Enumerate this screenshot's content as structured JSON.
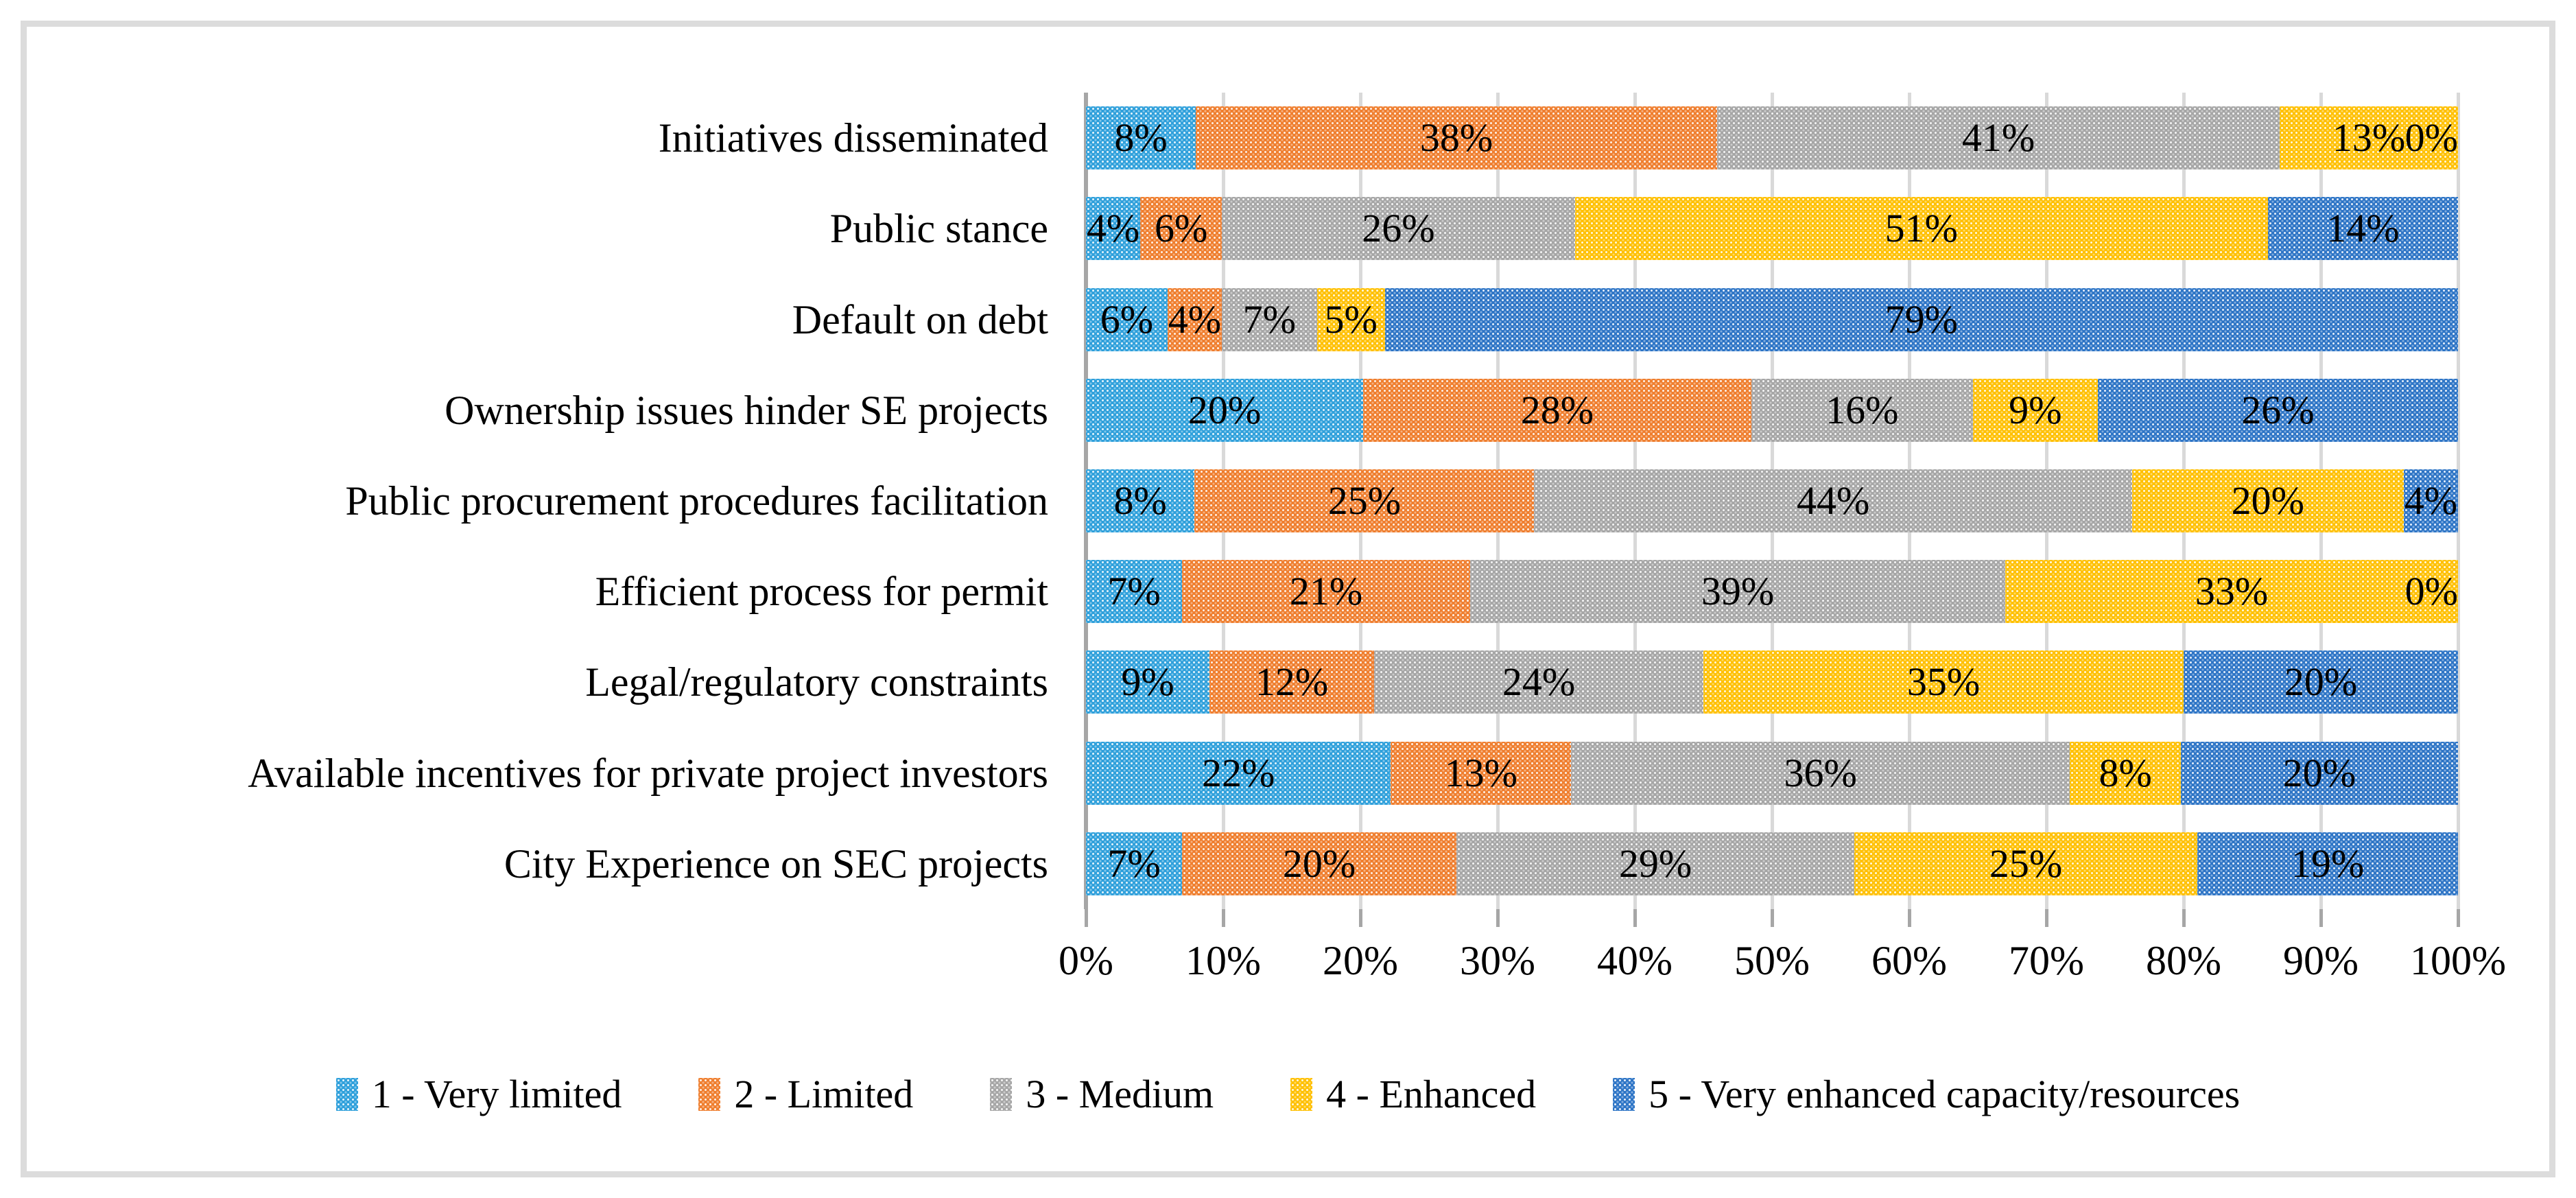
{
  "chart_data": {
    "type": "bar",
    "variant": "horizontal-stacked-100",
    "title": "",
    "xlabel": "",
    "ylabel": "",
    "xlim": [
      0,
      100
    ],
    "grid": "vertical",
    "legend_position": "bottom",
    "value_label_format": "percent",
    "categories": [
      "Initiatives disseminated",
      "Public stance",
      "Default on debt",
      "Ownership issues hinder SE projects",
      "Public procurement procedures facilitation",
      "Efficient process for permit",
      "Legal/regulatory constraints",
      "Available incentives for private project investors",
      "City Experience on SEC projects"
    ],
    "x_tick_labels": [
      "0%",
      "10%",
      "20%",
      "30%",
      "40%",
      "50%",
      "60%",
      "70%",
      "80%",
      "90%",
      "100%"
    ],
    "series": [
      {
        "name": "1 - Very limited",
        "color": "#2FA0DB",
        "values": [
          8,
          4,
          6,
          20,
          8,
          7,
          9,
          22,
          7
        ]
      },
      {
        "name": "2 - Limited",
        "color": "#EF7E2E",
        "values": [
          38,
          6,
          4,
          28,
          25,
          21,
          12,
          13,
          20
        ]
      },
      {
        "name": "3 - Medium",
        "color": "#A6A6A6",
        "values": [
          41,
          26,
          7,
          16,
          44,
          39,
          24,
          36,
          29
        ]
      },
      {
        "name": "4 - Enhanced",
        "color": "#FFC000",
        "values": [
          13,
          51,
          5,
          9,
          20,
          33,
          35,
          8,
          25
        ]
      },
      {
        "name": "5 - Very enhanced capacity/resources",
        "color": "#2E75C6",
        "values": [
          0,
          14,
          79,
          26,
          4,
          0,
          20,
          20,
          19
        ]
      }
    ]
  },
  "style_colors": {
    "gridline": "#D9D9D9",
    "axis_line": "#A6A6A6",
    "frame_border": "#DCDCDC",
    "label_text": "#000000"
  }
}
